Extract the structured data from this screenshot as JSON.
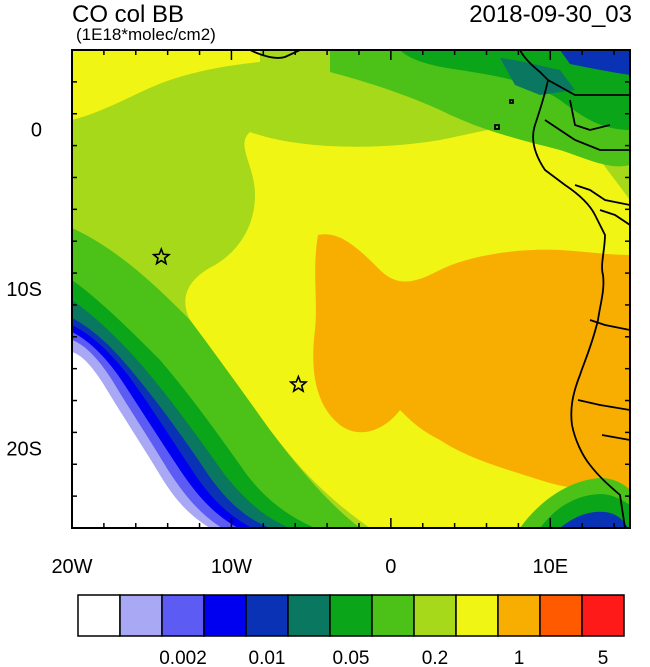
{
  "title": "CO col BB",
  "subtitle": "(1E18*molec/cm2)",
  "timestamp": "2018-09-30_03",
  "axes": {
    "x_ticks": [
      {
        "value": -20,
        "label": "20W"
      },
      {
        "value": -10,
        "label": "10W"
      },
      {
        "value": 0,
        "label": "0"
      },
      {
        "value": 10,
        "label": "10E"
      }
    ],
    "y_ticks": [
      {
        "value": 0,
        "label": "0"
      },
      {
        "value": -10,
        "label": "10S"
      },
      {
        "value": -20,
        "label": "20S"
      }
    ],
    "lon_range": [
      -20,
      15
    ],
    "lat_range": [
      -25,
      5
    ]
  },
  "colorbar": {
    "colors": [
      "#ffffff",
      "#a8a8f5",
      "#5c5cf5",
      "#0000f0",
      "#0a32b4",
      "#0a7860",
      "#0aa519",
      "#4cc219",
      "#a5d919",
      "#f0f514",
      "#f8ae00",
      "#ff5a00",
      "#ff1a1a"
    ],
    "labels": [
      {
        "after_box": 3,
        "text": "0.002"
      },
      {
        "after_box": 5,
        "text": "0.01"
      },
      {
        "after_box": 7,
        "text": "0.05"
      },
      {
        "after_box": 9,
        "text": "0.2"
      },
      {
        "after_box": 11,
        "text": "1"
      },
      {
        "after_box": 13,
        "text": "5"
      }
    ]
  },
  "markers": [
    {
      "name": "star-marker",
      "lon": -14.4,
      "lat": -8.0
    },
    {
      "name": "star-marker",
      "lon": -5.8,
      "lat": -16.0
    }
  ]
}
